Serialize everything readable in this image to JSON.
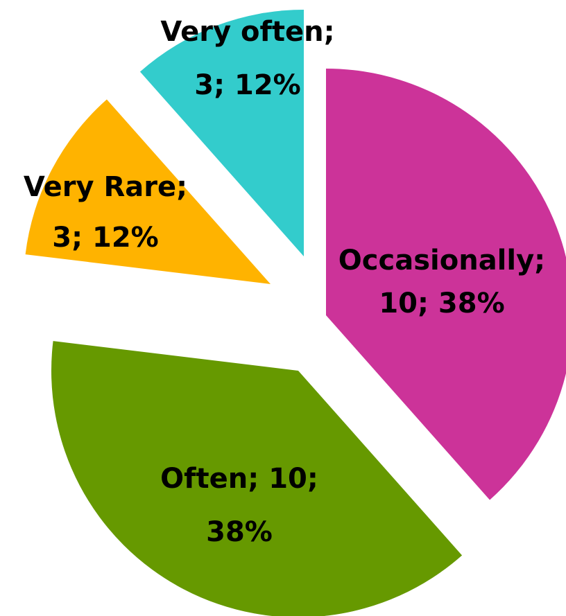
{
  "chart_data": {
    "type": "pie",
    "categories": [
      "Occasionally",
      "Often",
      "Very Rare",
      "Very often"
    ],
    "values": [
      10,
      10,
      3,
      3
    ],
    "value_labels": [
      [
        "Occasionally;",
        "10; 38%"
      ],
      [
        "Often; 10;",
        "38%"
      ],
      [
        "Very Rare;",
        "3; 12%"
      ],
      [
        "Very often;",
        "3; 12%"
      ]
    ],
    "colors": [
      "#cc3399",
      "#669900",
      "#ffb300",
      "#33cccc"
    ],
    "exploded": true
  }
}
